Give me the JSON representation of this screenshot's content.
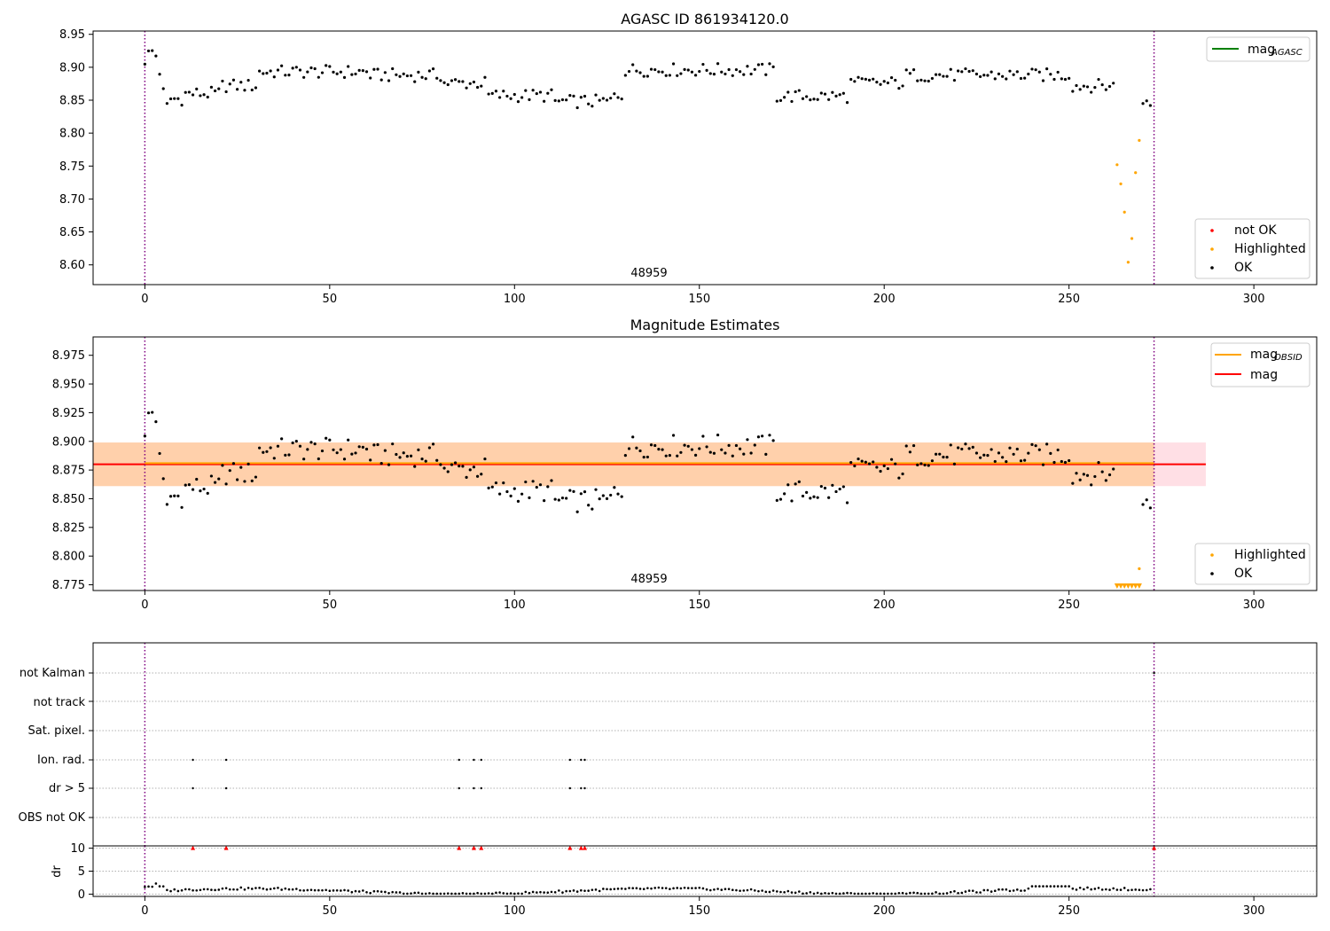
{
  "chart_data": [
    {
      "type": "scatter",
      "title": "AGASC ID 861934120.0",
      "annotation": "48959",
      "xlim": [
        -14,
        317
      ],
      "ylim": [
        8.57,
        8.955
      ],
      "xticks": [
        0,
        50,
        100,
        150,
        200,
        250,
        300
      ],
      "yticks": [
        8.6,
        8.65,
        8.7,
        8.75,
        8.8,
        8.85,
        8.9,
        8.95
      ],
      "vlines": [
        0,
        273
      ],
      "legend_top": [
        {
          "label": "mag",
          "sub": "AGASC",
          "color": "#008000"
        }
      ],
      "legend_bottom": [
        {
          "label": "not OK",
          "color": "#ff0000"
        },
        {
          "label": "Highlighted",
          "color": "#ffa500"
        },
        {
          "label": "OK",
          "color": "#000000"
        }
      ],
      "highlighted_points": [
        [
          263,
          8.752
        ],
        [
          264,
          8.723
        ],
        [
          265,
          8.68
        ],
        [
          266,
          8.604
        ],
        [
          267,
          8.64
        ],
        [
          268,
          8.74
        ],
        [
          269,
          8.789
        ]
      ],
      "ok_tail": [
        [
          270,
          8.845
        ],
        [
          271,
          8.849
        ],
        [
          272,
          8.842
        ]
      ]
    },
    {
      "type": "scatter",
      "title": "Magnitude Estimates",
      "annotation": "48959",
      "xlim": [
        -14,
        317
      ],
      "ylim": [
        8.77,
        8.991
      ],
      "xticks": [
        0,
        50,
        100,
        150,
        200,
        250,
        300
      ],
      "yticks": [
        8.775,
        8.8,
        8.825,
        8.85,
        8.875,
        8.9,
        8.925,
        8.95,
        8.975
      ],
      "vlines": [
        0,
        273
      ],
      "mag_obsid": 8.881,
      "mag": 8.88,
      "band_obsid": [
        8.861,
        8.899
      ],
      "band_mag": [
        8.861,
        8.899
      ],
      "band_mag_xrange": [
        -14,
        287
      ],
      "band_obsid_xrange": [
        -14,
        273
      ],
      "legend_top": [
        {
          "label": "mag",
          "sub": "OBSID",
          "color": "#ffa500"
        },
        {
          "label": "mag",
          "sub": "",
          "color": "#ff0000"
        }
      ],
      "legend_bottom": [
        {
          "label": "Highlighted",
          "color": "#ffa500"
        },
        {
          "label": "OK",
          "color": "#000000"
        }
      ],
      "highlighted_points": [
        [
          269,
          8.789
        ]
      ],
      "lower_markers_x": [
        263,
        264,
        265,
        266,
        267,
        268,
        269
      ]
    },
    {
      "type": "scatter",
      "flags_title": "",
      "categories": [
        "OBS not OK",
        "dr > 5",
        "Ion. rad.",
        "Sat. pixel.",
        "not track",
        "not Kalman"
      ],
      "flag_points": {
        "dr > 5": [
          13,
          22,
          85,
          89,
          91,
          115,
          118,
          119
        ],
        "Ion. rad.": [
          13,
          22,
          85,
          89,
          91,
          115,
          118,
          119
        ],
        "not Kalman": [
          273
        ]
      },
      "xlim": [
        -14,
        317
      ],
      "xticks": [
        0,
        50,
        100,
        150,
        200,
        250,
        300
      ],
      "vlines": [
        0,
        273
      ]
    },
    {
      "type": "scatter",
      "ylabel": "dr",
      "ylim": [
        -0.5,
        10.5
      ],
      "yticks": [
        0,
        5,
        10
      ],
      "xlim": [
        -14,
        317
      ],
      "xticks": [
        0,
        50,
        100,
        150,
        200,
        250,
        300
      ],
      "vlines": [
        0,
        273
      ],
      "dr_above_markers_x": [
        13,
        22,
        85,
        89,
        91,
        115,
        118,
        119,
        273
      ]
    }
  ]
}
